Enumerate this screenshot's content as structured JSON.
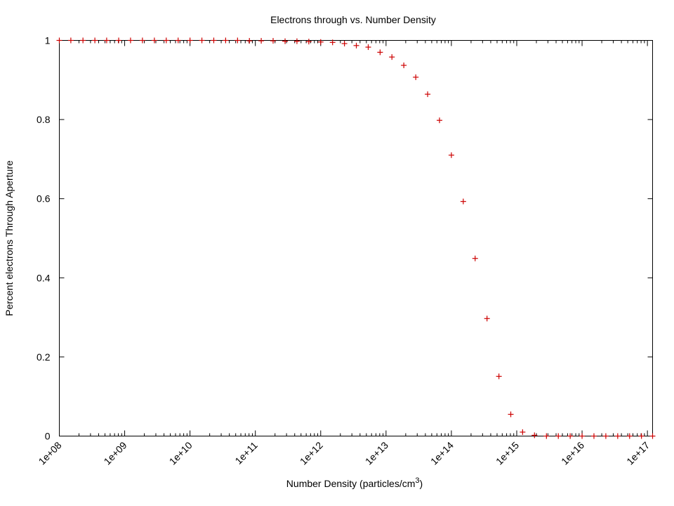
{
  "chart_data": {
    "type": "scatter",
    "title": "Electrons through vs. Number Density",
    "xlabel": "Number Density (particles/cm",
    "xlabel_sup": "3",
    "xlabel_close": ")",
    "ylabel": "Percent electrons Through Aperture",
    "x_scale": "log",
    "xlim": [
      100000000.0,
      1.2e+17
    ],
    "ylim": [
      0,
      1
    ],
    "grid": false,
    "legend": "none",
    "x_ticks": [
      {
        "value": 100000000.0,
        "label": "1e+08"
      },
      {
        "value": 1000000000.0,
        "label": "1e+09"
      },
      {
        "value": 10000000000.0,
        "label": "1e+10"
      },
      {
        "value": 100000000000.0,
        "label": "1e+11"
      },
      {
        "value": 1000000000000.0,
        "label": "1e+12"
      },
      {
        "value": 10000000000000.0,
        "label": "1e+13"
      },
      {
        "value": 100000000000000.0,
        "label": "1e+14"
      },
      {
        "value": 1000000000000000.0,
        "label": "1e+15"
      },
      {
        "value": 1e+16,
        "label": "1e+16"
      },
      {
        "value": 1e+17,
        "label": "1e+17"
      }
    ],
    "y_ticks": [
      {
        "value": 0,
        "label": "0"
      },
      {
        "value": 0.2,
        "label": "0.2"
      },
      {
        "value": 0.4,
        "label": "0.4"
      },
      {
        "value": 0.6,
        "label": "0.6"
      },
      {
        "value": 0.8,
        "label": "0.8"
      },
      {
        "value": 1,
        "label": "1"
      }
    ],
    "colors": {
      "points": "#cc0000",
      "axes": "#000000"
    },
    "series": [
      {
        "marker": "plus",
        "color": "#cc0000",
        "points": [
          [
            100000000.0,
            1.0
          ],
          [
            150000000.0,
            1.0
          ],
          [
            230000000.0,
            1.0
          ],
          [
            350000000.0,
            1.0
          ],
          [
            530000000.0,
            1.0
          ],
          [
            810000000.0,
            1.0
          ],
          [
            1230000000.0,
            1.0
          ],
          [
            1870000000.0,
            1.0
          ],
          [
            2850000000.0,
            1.0
          ],
          [
            4330000000.0,
            1.0
          ],
          [
            6580000000.0,
            1.0
          ],
          [
            10000000000.0,
            1.0
          ],
          [
            15200000000.0,
            1.0
          ],
          [
            23100000000.0,
            1.0
          ],
          [
            35100000000.0,
            1.0
          ],
          [
            53400000000.0,
            1.0
          ],
          [
            81100000000.0,
            0.999
          ],
          [
            123000000000.0,
            0.999
          ],
          [
            187000000000.0,
            0.999
          ],
          [
            285000000000.0,
            0.998
          ],
          [
            433000000000.0,
            0.998
          ],
          [
            658000000000.0,
            0.997
          ],
          [
            1000000000000.0,
            0.996
          ],
          [
            1520000000000.0,
            0.995
          ],
          [
            2310000000000.0,
            0.992
          ],
          [
            3510000000000.0,
            0.987
          ],
          [
            5340000000000.0,
            0.983
          ],
          [
            8110000000000.0,
            0.97
          ],
          [
            12300000000000.0,
            0.958
          ],
          [
            18700000000000.0,
            0.937
          ],
          [
            28500000000000.0,
            0.907
          ],
          [
            43300000000000.0,
            0.864
          ],
          [
            65800000000000.0,
            0.798
          ],
          [
            100000000000000.0,
            0.71
          ],
          [
            152000000000000.0,
            0.593
          ],
          [
            231000000000000.0,
            0.449
          ],
          [
            351000000000000.0,
            0.297
          ],
          [
            534000000000000.0,
            0.151
          ],
          [
            811000000000000.0,
            0.055
          ],
          [
            1230000000000000.0,
            0.01
          ],
          [
            1870000000000000.0,
            0.002
          ],
          [
            2850000000000000.0,
            0.0
          ],
          [
            4330000000000000.0,
            0.0
          ],
          [
            6580000000000000.0,
            0.0
          ],
          [
            1e+16,
            0.0
          ],
          [
            1.52e+16,
            0.0
          ],
          [
            2.31e+16,
            0.0
          ],
          [
            3.51e+16,
            0.0
          ],
          [
            5.34e+16,
            0.0
          ],
          [
            8.11e+16,
            0.0
          ],
          [
            1.2e+17,
            0.0
          ]
        ]
      }
    ]
  }
}
